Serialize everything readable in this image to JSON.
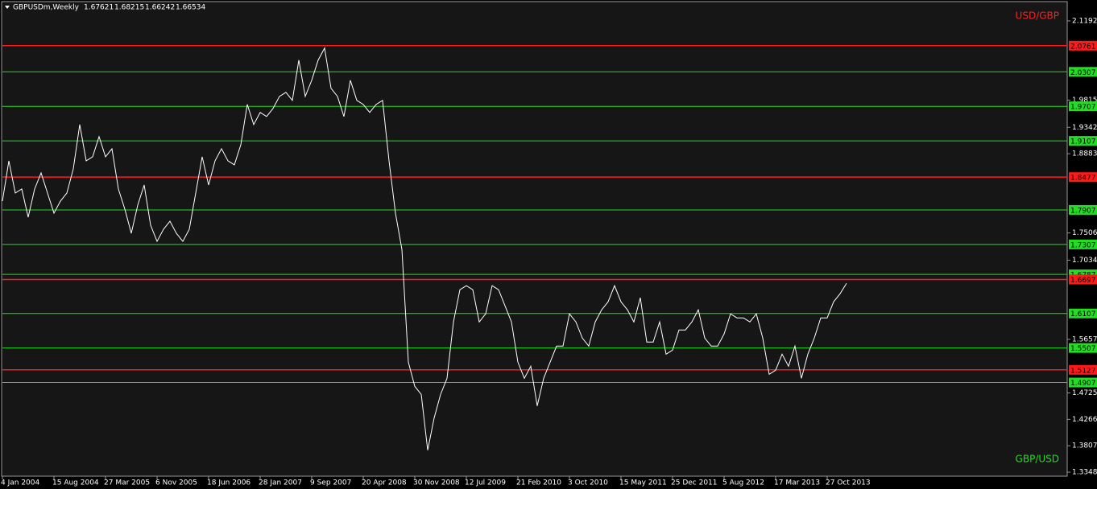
{
  "chart_data": {
    "type": "line",
    "title": "GBPUSDm,Weekly",
    "ohlc": [
      1.67621,
      1.68215,
      1.66242,
      1.66534
    ],
    "annotations": [
      {
        "text": "USD/GBP",
        "color": "#ff2020"
      },
      {
        "text": "GBP/USD",
        "color": "#22dd22"
      }
    ],
    "categories": [
      "4 Jan 2004",
      null,
      null,
      null,
      null,
      null,
      null,
      null,
      "15 Aug 2004",
      null,
      null,
      null,
      null,
      null,
      null,
      null,
      "27 Mar 2005",
      null,
      null,
      null,
      null,
      null,
      null,
      null,
      "6 Nov 2005",
      null,
      null,
      null,
      null,
      null,
      null,
      null,
      "18 Jun 2006",
      null,
      null,
      null,
      null,
      null,
      null,
      null,
      "28 Jan 2007",
      null,
      null,
      null,
      null,
      null,
      null,
      null,
      "9 Sep 2007",
      null,
      null,
      null,
      null,
      null,
      null,
      null,
      "20 Apr 2008",
      null,
      null,
      null,
      null,
      null,
      null,
      null,
      "30 Nov 2008",
      null,
      null,
      null,
      null,
      null,
      null,
      null,
      "12 Jul 2009",
      null,
      null,
      null,
      null,
      null,
      null,
      null,
      "21 Feb 2010",
      null,
      null,
      null,
      null,
      null,
      null,
      null,
      "3 Oct 2010",
      null,
      null,
      null,
      null,
      null,
      null,
      null,
      "15 May 2011",
      null,
      null,
      null,
      null,
      null,
      null,
      null,
      "25 Dec 2011",
      null,
      null,
      null,
      null,
      null,
      null,
      null,
      "5 Aug 2012",
      null,
      null,
      null,
      null,
      null,
      null,
      null,
      "17 Mar 2013",
      null,
      null,
      null,
      null,
      null,
      null,
      null,
      "27 Oct 2013",
      null,
      null,
      null
    ],
    "values": [
      1.806,
      1.876,
      1.82,
      1.827,
      1.778,
      1.827,
      1.855,
      1.82,
      1.785,
      1.806,
      1.82,
      1.862,
      1.939,
      1.876,
      1.883,
      1.918,
      1.883,
      1.897,
      1.827,
      1.792,
      1.75,
      1.799,
      1.834,
      1.764,
      1.736,
      1.757,
      1.771,
      1.75,
      1.736,
      1.757,
      1.82,
      1.883,
      1.834,
      1.876,
      1.897,
      1.876,
      1.869,
      1.904,
      1.974,
      1.939,
      1.96,
      1.953,
      1.967,
      1.988,
      1.995,
      1.981,
      2.051,
      1.988,
      2.016,
      2.051,
      2.072,
      2.002,
      1.988,
      1.953,
      2.016,
      1.981,
      1.974,
      1.96,
      1.974,
      1.981,
      1.876,
      1.785,
      1.722,
      1.526,
      1.484,
      1.47,
      1.373,
      1.429,
      1.47,
      1.498,
      1.596,
      1.652,
      1.659,
      1.652,
      1.596,
      1.61,
      1.659,
      1.652,
      1.624,
      1.596,
      1.526,
      1.498,
      1.519,
      1.45,
      1.498,
      1.526,
      1.554,
      1.554,
      1.61,
      1.596,
      1.568,
      1.554,
      1.596,
      1.617,
      1.631,
      1.659,
      1.631,
      1.617,
      1.596,
      1.638,
      1.561,
      1.561,
      1.596,
      1.54,
      1.547,
      1.582,
      1.582,
      1.596,
      1.617,
      1.568,
      1.554,
      1.554,
      1.575,
      1.61,
      1.603,
      1.603,
      1.596,
      1.61,
      1.568,
      1.505,
      1.512,
      1.54,
      1.519,
      1.554,
      1.498,
      1.54,
      1.568,
      1.603,
      1.603,
      1.631,
      1.645,
      1.663
    ],
    "color": "#ffffff",
    "ylim": [
      1.3279,
      2.1555
    ],
    "yticks": [
      1.33485,
      1.38075,
      1.42665,
      1.47255,
      1.56575,
      1.7034,
      1.75065,
      1.88835,
      1.93425,
      1.9815,
      2.1192
    ],
    "levels": [
      {
        "value": 2.0761,
        "color": "#ff1a1a"
      },
      {
        "value": 2.0307,
        "color": "#22dd22"
      },
      {
        "value": 1.9707,
        "color": "#22dd22"
      },
      {
        "value": 1.9107,
        "color": "#22dd22"
      },
      {
        "value": 1.8477,
        "color": "#ff1a1a"
      },
      {
        "value": 1.7907,
        "color": "#22dd22"
      },
      {
        "value": 1.7307,
        "color": "#22dd22"
      },
      {
        "value": 1.6787,
        "color": "#22dd22"
      },
      {
        "value": 1.6697,
        "color": "#ff1a1a"
      },
      {
        "value": 1.6107,
        "color": "#22dd22"
      },
      {
        "value": 1.5507,
        "color": "#22dd22"
      },
      {
        "value": 1.5127,
        "color": "#ff1a1a"
      },
      {
        "value": 1.4907,
        "color": "#22dd22"
      }
    ]
  }
}
